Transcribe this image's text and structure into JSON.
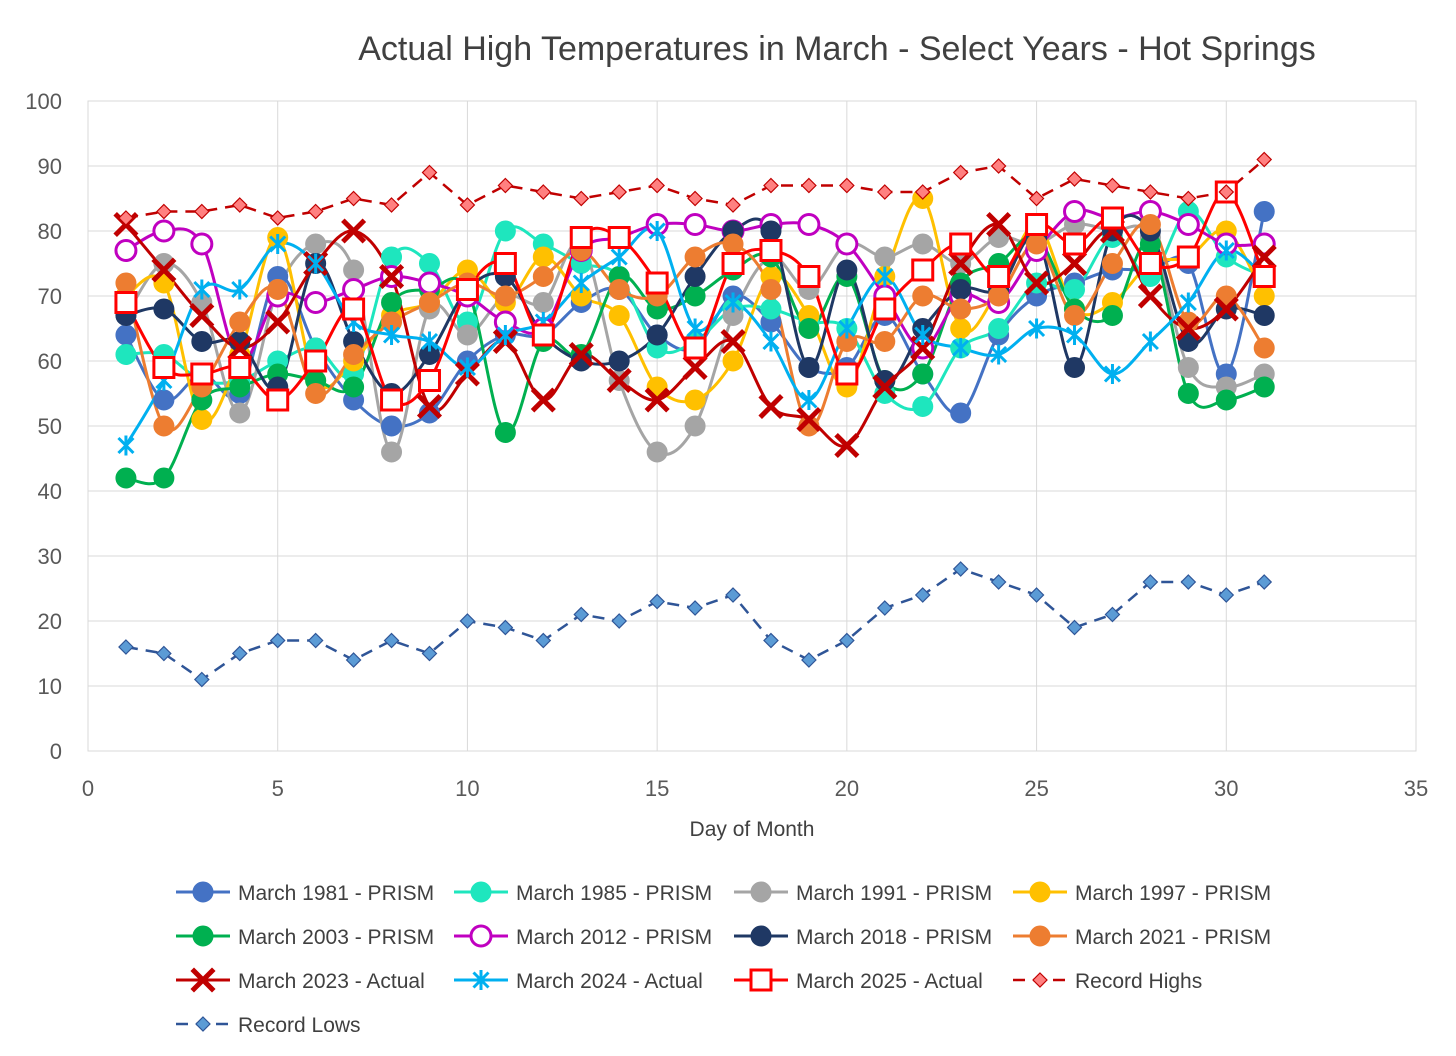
{
  "chart_data": {
    "type": "line",
    "title": "Actual High Temperatures in March - Select Years - Hot Springs",
    "xlabel": "Day of Month",
    "ylabel": "",
    "xlim": [
      0,
      35
    ],
    "ylim": [
      0,
      100
    ],
    "x_ticks": [
      "0",
      "5",
      "10",
      "15",
      "20",
      "25",
      "30",
      "35"
    ],
    "y_ticks": [
      "0",
      "10",
      "20",
      "30",
      "40",
      "50",
      "60",
      "70",
      "80",
      "90",
      "100"
    ],
    "grid": true,
    "legend_position": "bottom",
    "x": [
      1,
      2,
      3,
      4,
      5,
      6,
      7,
      8,
      9,
      10,
      11,
      12,
      13,
      14,
      15,
      16,
      17,
      18,
      19,
      20,
      21,
      22,
      23,
      24,
      25,
      26,
      27,
      28,
      29,
      30,
      31
    ],
    "series": [
      {
        "name": "March 1981 - PRISM",
        "color": "#4472C4",
        "marker": "circle",
        "style": "solid",
        "values": [
          64,
          54,
          58,
          55,
          73,
          62,
          54,
          50,
          52,
          60,
          64,
          64,
          69,
          71,
          64,
          62,
          70,
          66,
          59,
          59,
          67,
          58,
          52,
          64,
          70,
          72,
          74,
          74,
          75,
          58,
          83
        ]
      },
      {
        "name": "March 1985 - PRISM",
        "color": "#1EE6BE",
        "marker": "circle",
        "style": "solid",
        "values": [
          61,
          61,
          57,
          57,
          60,
          62,
          58,
          76,
          75,
          66,
          80,
          78,
          75,
          73,
          62,
          63,
          68,
          68,
          66,
          65,
          55,
          53,
          62,
          65,
          72,
          71,
          79,
          73,
          83,
          76,
          73
        ]
      },
      {
        "name": "March 1991 - PRISM",
        "color": "#A5A5A5",
        "marker": "circle",
        "style": "solid",
        "values": [
          67,
          75,
          69,
          52,
          71,
          78,
          74,
          46,
          68,
          64,
          70,
          69,
          78,
          57,
          46,
          50,
          67,
          76,
          71,
          78,
          76,
          78,
          75,
          79,
          78,
          81,
          80,
          79,
          59,
          56,
          58
        ]
      },
      {
        "name": "March 1997 - PRISM",
        "color": "#FFC000",
        "marker": "circle",
        "style": "solid",
        "values": [
          70,
          72,
          51,
          61,
          79,
          57,
          60,
          67,
          69,
          74,
          69,
          76,
          70,
          67,
          56,
          54,
          60,
          73,
          67,
          56,
          73,
          85,
          65,
          71,
          81,
          68,
          69,
          75,
          76,
          80,
          70
        ]
      },
      {
        "name": "March 2003 - PRISM",
        "color": "#00B050",
        "marker": "circle",
        "style": "solid",
        "values": [
          42,
          42,
          54,
          56,
          58,
          57,
          56,
          69,
          71,
          71,
          49,
          63,
          61,
          73,
          68,
          70,
          74,
          76,
          65,
          73,
          57,
          58,
          72,
          75,
          79,
          68,
          67,
          78,
          55,
          54,
          56
        ]
      },
      {
        "name": "March 2012 - PRISM",
        "color": "#C000C0",
        "marker": "hollow-circle",
        "style": "solid",
        "values": [
          77,
          80,
          78,
          60,
          70,
          69,
          71,
          73,
          72,
          70,
          66,
          65,
          77,
          79,
          81,
          81,
          80,
          81,
          81,
          78,
          70,
          62,
          70,
          69,
          77,
          83,
          82,
          83,
          81,
          78,
          78
        ]
      },
      {
        "name": "March 2018 - PRISM",
        "color": "#1F3864",
        "marker": "circle",
        "style": "solid",
        "values": [
          67,
          68,
          63,
          63,
          56,
          75,
          63,
          55,
          61,
          71,
          73,
          64,
          60,
          60,
          64,
          73,
          80,
          80,
          59,
          74,
          57,
          65,
          71,
          71,
          79,
          59,
          80,
          80,
          63,
          68,
          67
        ]
      },
      {
        "name": "March 2021 - PRISM",
        "color": "#ED7D31",
        "marker": "circle",
        "style": "solid",
        "values": [
          72,
          50,
          56,
          66,
          71,
          55,
          61,
          66,
          69,
          72,
          70,
          73,
          77,
          71,
          70,
          76,
          78,
          71,
          50,
          63,
          63,
          70,
          68,
          70,
          78,
          67,
          75,
          81,
          66,
          70,
          62
        ]
      },
      {
        "name": "March 2023 - Actual",
        "color": "#C00000",
        "marker": "x",
        "style": "solid",
        "values": [
          81,
          74,
          67,
          62,
          66,
          75,
          80,
          73,
          53,
          58,
          63,
          54,
          61,
          57,
          54,
          59,
          63,
          53,
          51,
          47,
          56,
          62,
          75,
          81,
          72,
          75,
          80,
          70,
          65,
          68,
          76
        ]
      },
      {
        "name": "March 2024 - Actual",
        "color": "#00B0F0",
        "marker": "asterisk",
        "style": "solid",
        "values": [
          47,
          57,
          71,
          71,
          78,
          75,
          66,
          64,
          63,
          59,
          64,
          66,
          72,
          76,
          80,
          65,
          69,
          63,
          54,
          65,
          73,
          64,
          62,
          61,
          65,
          64,
          58,
          63,
          69,
          77,
          73
        ]
      },
      {
        "name": "March 2025 - Actual",
        "color": "#FF0000",
        "marker": "hollow-square",
        "style": "solid",
        "values": [
          69,
          59,
          58,
          59,
          54,
          60,
          68,
          54,
          57,
          71,
          75,
          64,
          79,
          79,
          72,
          62,
          75,
          77,
          73,
          58,
          68,
          74,
          78,
          73,
          81,
          78,
          82,
          75,
          76,
          86,
          73
        ]
      },
      {
        "name": "Record Highs",
        "color": "#C00000",
        "marker": "diamond",
        "style": "dashed",
        "marker_fill": "#FF8080",
        "values": [
          82,
          83,
          83,
          84,
          82,
          83,
          85,
          84,
          89,
          84,
          87,
          86,
          85,
          86,
          87,
          85,
          84,
          87,
          87,
          87,
          86,
          86,
          89,
          90,
          85,
          88,
          87,
          86,
          85,
          86,
          91
        ]
      },
      {
        "name": "Record Lows",
        "color": "#2F5597",
        "marker": "diamond",
        "style": "dashed",
        "marker_fill": "#5B9BD5",
        "values": [
          16,
          15,
          11,
          15,
          17,
          17,
          14,
          17,
          15,
          20,
          19,
          17,
          21,
          20,
          23,
          22,
          24,
          17,
          14,
          17,
          22,
          24,
          28,
          26,
          24,
          19,
          21,
          26,
          26,
          24,
          26
        ]
      }
    ]
  }
}
